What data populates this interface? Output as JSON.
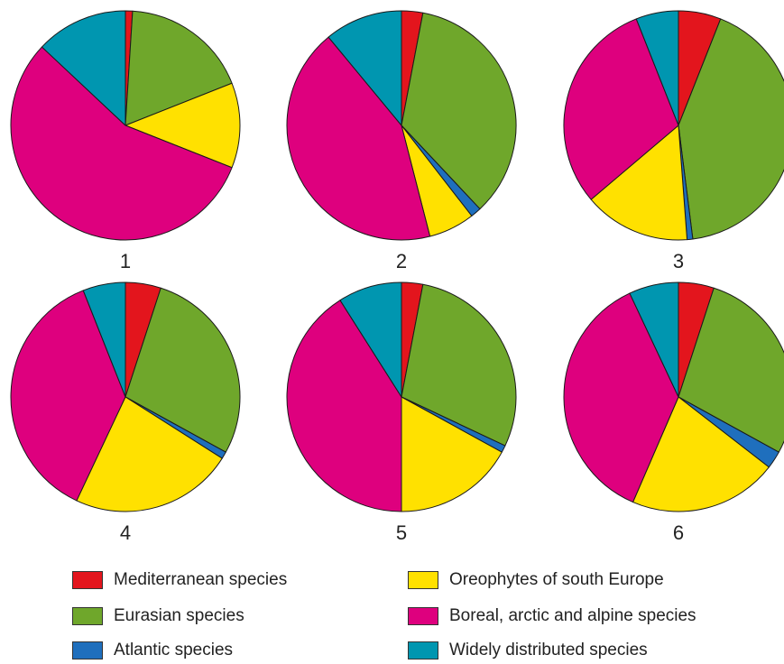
{
  "chart_data": {
    "type": "pie",
    "categories": [
      "Mediterranean species",
      "Eurasian species",
      "Atlantic species",
      "Oreophytes of south Europe",
      "Boreal, arctic and alpine species",
      "Widely distributed species"
    ],
    "colors": {
      "Mediterranean species": "#e3151d",
      "Eurasian species": "#6fa72b",
      "Atlantic species": "#1f6fbd",
      "Oreophytes of south Europe": "#ffe100",
      "Boreal, arctic and alpine species": "#de007e",
      "Widely distributed species": "#0096b0"
    },
    "charts": [
      {
        "label": "1",
        "values": [
          1,
          18,
          0,
          12,
          56,
          13
        ]
      },
      {
        "label": "2",
        "values": [
          3,
          35,
          1.5,
          6.5,
          43,
          11
        ]
      },
      {
        "label": "3",
        "values": [
          6,
          42,
          0.8,
          15,
          30.2,
          6
        ]
      },
      {
        "label": "4",
        "values": [
          5,
          28,
          1,
          23,
          37,
          6
        ]
      },
      {
        "label": "5",
        "values": [
          3,
          29,
          1,
          17,
          41,
          9
        ]
      },
      {
        "label": "6",
        "values": [
          5,
          28,
          2.5,
          21,
          36.5,
          7
        ]
      }
    ]
  },
  "legend": {
    "items": [
      {
        "label": "Mediterranean species",
        "color": "#e3151d"
      },
      {
        "label": "Oreophytes of south Europe",
        "color": "#ffe100"
      },
      {
        "label": "Eurasian species",
        "color": "#6fa72b"
      },
      {
        "label": "Boreal, arctic and alpine species",
        "color": "#de007e"
      },
      {
        "label": "Atlantic species",
        "color": "#1f6fbd"
      },
      {
        "label": "Widely distributed species",
        "color": "#0096b0"
      }
    ]
  }
}
